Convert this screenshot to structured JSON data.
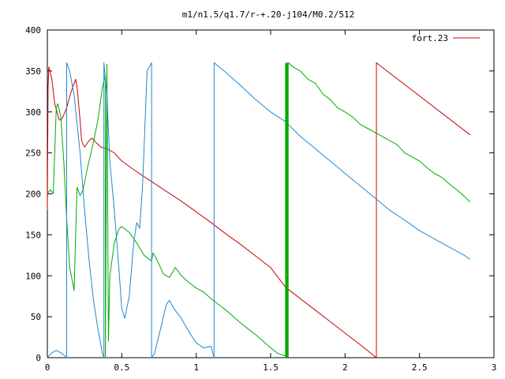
{
  "chart_data": {
    "type": "line",
    "title": "m1/n1.5/q1.7/r-+.20-j104/M0.2/512",
    "xlabel": "",
    "ylabel": "",
    "xlim": [
      0,
      3
    ],
    "ylim": [
      0,
      400
    ],
    "x_ticks": [
      "0",
      "0.5",
      "1",
      "1.5",
      "2",
      "2.5",
      "3"
    ],
    "y_ticks": [
      "0",
      "50",
      "100",
      "150",
      "200",
      "250",
      "300",
      "350",
      "400"
    ],
    "grid": false,
    "legend": {
      "position": "top-right",
      "entries": [
        "fort.23"
      ]
    },
    "series": [
      {
        "name": "fort.23",
        "color": "#cc0000",
        "points": [
          [
            0,
            180
          ],
          [
            0.005,
            330
          ],
          [
            0.01,
            355
          ],
          [
            0.03,
            340
          ],
          [
            0.05,
            310
          ],
          [
            0.08,
            290
          ],
          [
            0.1,
            292
          ],
          [
            0.13,
            305
          ],
          [
            0.16,
            325
          ],
          [
            0.18,
            335
          ],
          [
            0.19,
            340
          ],
          [
            0.2,
            330
          ],
          [
            0.22,
            290
          ],
          [
            0.23,
            265
          ],
          [
            0.25,
            257
          ],
          [
            0.28,
            265
          ],
          [
            0.3,
            268
          ],
          [
            0.33,
            262
          ],
          [
            0.36,
            257
          ],
          [
            0.4,
            255
          ],
          [
            0.45,
            250
          ],
          [
            0.5,
            240
          ],
          [
            0.6,
            227
          ],
          [
            0.7,
            215
          ],
          [
            0.8,
            203
          ],
          [
            0.9,
            191
          ],
          [
            1.0,
            178
          ],
          [
            1.1,
            165
          ],
          [
            1.2,
            151
          ],
          [
            1.3,
            138
          ],
          [
            1.4,
            124
          ],
          [
            1.5,
            110
          ],
          [
            1.6,
            86
          ],
          [
            1.7,
            72
          ],
          [
            1.8,
            58
          ],
          [
            1.9,
            44
          ],
          [
            2.0,
            30
          ],
          [
            2.1,
            16
          ],
          [
            2.21,
            0
          ],
          [
            2.21,
            360
          ],
          [
            2.84,
            272
          ]
        ]
      },
      {
        "name": "",
        "color": "#00aa00",
        "points": [
          [
            0,
            200
          ],
          [
            0.02,
            205
          ],
          [
            0.04,
            200
          ],
          [
            0.06,
            305
          ],
          [
            0.07,
            310
          ],
          [
            0.09,
            295
          ],
          [
            0.11,
            240
          ],
          [
            0.13,
            170
          ],
          [
            0.15,
            110
          ],
          [
            0.18,
            82
          ],
          [
            0.19,
            150
          ],
          [
            0.2,
            208
          ],
          [
            0.22,
            198
          ],
          [
            0.24,
            205
          ],
          [
            0.27,
            232
          ],
          [
            0.3,
            255
          ],
          [
            0.34,
            290
          ],
          [
            0.37,
            330
          ],
          [
            0.39,
            345
          ],
          [
            0.39,
            0
          ],
          [
            0.4,
            358
          ],
          [
            0.41,
            20
          ],
          [
            0.42,
            100
          ],
          [
            0.45,
            140
          ],
          [
            0.48,
            157
          ],
          [
            0.5,
            160
          ],
          [
            0.55,
            153
          ],
          [
            0.6,
            140
          ],
          [
            0.65,
            125
          ],
          [
            0.7,
            118
          ],
          [
            0.71,
            128
          ],
          [
            0.73,
            122
          ],
          [
            0.78,
            102
          ],
          [
            0.82,
            98
          ],
          [
            0.86,
            110
          ],
          [
            0.9,
            100
          ],
          [
            0.95,
            92
          ],
          [
            1.0,
            85
          ],
          [
            1.05,
            80
          ],
          [
            1.1,
            72
          ],
          [
            1.15,
            65
          ],
          [
            1.2,
            58
          ],
          [
            1.25,
            50
          ],
          [
            1.3,
            42
          ],
          [
            1.35,
            35
          ],
          [
            1.4,
            28
          ],
          [
            1.45,
            20
          ],
          [
            1.5,
            12
          ],
          [
            1.55,
            5
          ],
          [
            1.6,
            2
          ],
          [
            1.6,
            358
          ],
          [
            1.62,
            360
          ],
          [
            1.65,
            355
          ],
          [
            1.7,
            350
          ],
          [
            1.75,
            340
          ],
          [
            1.8,
            335
          ],
          [
            1.85,
            322
          ],
          [
            1.9,
            315
          ],
          [
            1.95,
            305
          ],
          [
            2.0,
            300
          ],
          [
            2.05,
            294
          ],
          [
            2.1,
            285
          ],
          [
            2.15,
            280
          ],
          [
            2.2,
            275
          ],
          [
            2.25,
            270
          ],
          [
            2.3,
            265
          ],
          [
            2.35,
            260
          ],
          [
            2.4,
            250
          ],
          [
            2.45,
            245
          ],
          [
            2.5,
            240
          ],
          [
            2.55,
            232
          ],
          [
            2.6,
            225
          ],
          [
            2.65,
            220
          ],
          [
            2.7,
            212
          ],
          [
            2.75,
            205
          ],
          [
            2.8,
            197
          ],
          [
            2.84,
            190
          ]
        ]
      },
      {
        "name": "",
        "color": "#1e88d0",
        "points": [
          [
            0,
            0
          ],
          [
            0.01,
            2
          ],
          [
            0.03,
            6
          ],
          [
            0.06,
            9
          ],
          [
            0.09,
            6
          ],
          [
            0.12,
            2
          ],
          [
            0.13,
            0
          ],
          [
            0.13,
            360
          ],
          [
            0.15,
            350
          ],
          [
            0.18,
            320
          ],
          [
            0.22,
            250
          ],
          [
            0.25,
            180
          ],
          [
            0.28,
            120
          ],
          [
            0.31,
            70
          ],
          [
            0.34,
            35
          ],
          [
            0.37,
            5
          ],
          [
            0.38,
            0
          ],
          [
            0.38,
            360
          ],
          [
            0.4,
            320
          ],
          [
            0.42,
            240
          ],
          [
            0.45,
            180
          ],
          [
            0.48,
            110
          ],
          [
            0.5,
            60
          ],
          [
            0.52,
            48
          ],
          [
            0.55,
            75
          ],
          [
            0.58,
            140
          ],
          [
            0.6,
            165
          ],
          [
            0.62,
            158
          ],
          [
            0.64,
            210
          ],
          [
            0.67,
            350
          ],
          [
            0.7,
            360
          ],
          [
            0.7,
            0
          ],
          [
            0.72,
            5
          ],
          [
            0.76,
            35
          ],
          [
            0.8,
            65
          ],
          [
            0.82,
            70
          ],
          [
            0.85,
            60
          ],
          [
            0.9,
            48
          ],
          [
            0.95,
            32
          ],
          [
            1.0,
            18
          ],
          [
            1.05,
            12
          ],
          [
            1.1,
            14
          ],
          [
            1.12,
            0
          ],
          [
            1.12,
            360
          ],
          [
            1.2,
            348
          ],
          [
            1.3,
            332
          ],
          [
            1.4,
            315
          ],
          [
            1.5,
            300
          ],
          [
            1.6,
            288
          ],
          [
            1.7,
            270
          ],
          [
            1.8,
            255
          ],
          [
            1.9,
            240
          ],
          [
            2.0,
            225
          ],
          [
            2.1,
            210
          ],
          [
            2.2,
            195
          ],
          [
            2.3,
            180
          ],
          [
            2.4,
            168
          ],
          [
            2.5,
            155
          ],
          [
            2.6,
            145
          ],
          [
            2.7,
            135
          ],
          [
            2.8,
            125
          ],
          [
            2.84,
            120
          ]
        ]
      }
    ]
  }
}
